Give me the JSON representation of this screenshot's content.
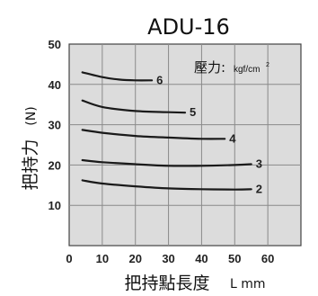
{
  "chart_data": {
    "type": "line",
    "title": "ADU-16",
    "ylabel": "把持力",
    "ylabel_unit": "(N)",
    "xlabel": "把持點長度",
    "xlabel_unit": "L  mm",
    "xlim": [
      0,
      70
    ],
    "ylim": [
      0,
      50
    ],
    "x_ticks": [
      "0",
      "10",
      "20",
      "30",
      "40",
      "50",
      "60"
    ],
    "y_ticks": [
      "10",
      "20",
      "30",
      "40",
      "50"
    ],
    "grid": true,
    "legend": {
      "label": "壓力:",
      "unit": "kgf/cm",
      "unit_power": "2",
      "placement": "top-right"
    },
    "series": [
      {
        "name": "6",
        "x": [
          4,
          10,
          15,
          20,
          25
        ],
        "y": [
          43,
          41.8,
          41.2,
          41,
          41
        ]
      },
      {
        "name": "5",
        "x": [
          4,
          10,
          20,
          30,
          35
        ],
        "y": [
          36,
          34.4,
          33.4,
          33.1,
          33
        ]
      },
      {
        "name": "4",
        "x": [
          4,
          10,
          20,
          30,
          40,
          47
        ],
        "y": [
          28.7,
          28,
          27.2,
          26.8,
          26.5,
          26.5
        ]
      },
      {
        "name": "3",
        "x": [
          4,
          10,
          20,
          30,
          40,
          50,
          55
        ],
        "y": [
          21.2,
          20.7,
          20.2,
          19.8,
          19.8,
          20,
          20.2
        ]
      },
      {
        "name": "2",
        "x": [
          4,
          10,
          20,
          30,
          40,
          50,
          55
        ],
        "y": [
          16.2,
          15.4,
          14.7,
          14.2,
          14,
          13.9,
          14
        ]
      }
    ]
  }
}
